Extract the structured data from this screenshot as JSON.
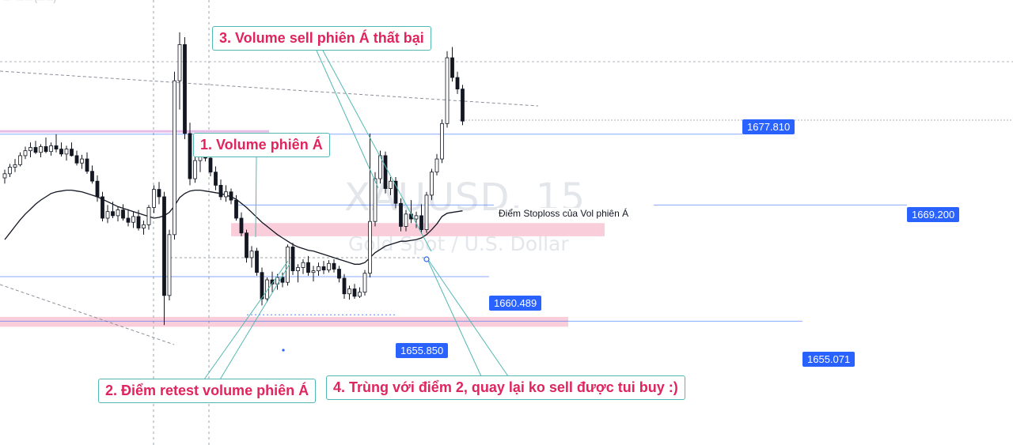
{
  "header": {
    "meta": "— · — — (— —)"
  },
  "watermark": {
    "symbol": "XAUUSD, 15",
    "description": "Gold Spot / U.S. Dollar"
  },
  "annotations": {
    "note1": "1. Volume phiên Á",
    "note2": "2. Điểm retest volume phiên Á",
    "note3": "3. Volume sell phiên Á thất bại",
    "note4": "4. Trùng với điểm 2, quay lại ko sell được tui buy :)",
    "stoploss": "Điểm Stoploss của Vol phiên Á"
  },
  "price_labels": {
    "p1": "1677.810",
    "p2": "1669.200",
    "p3": "1660.489",
    "p4": "1655.850",
    "p5": "1655.071"
  },
  "colors": {
    "up_candle_fill": "#ffffff",
    "down_candle_fill": "#131722",
    "candle_outline": "#131722",
    "moving_average": "#131722",
    "horizontal_line": "#2962ff",
    "zone": "#f8c6d4",
    "callout_border": "#52b8b3",
    "callout_text": "#e0245e",
    "price_tag_bg": "#2962ff"
  },
  "chart_data": {
    "type": "candlestick",
    "symbol": "XAUUSD",
    "timeframe": "15",
    "ylim": [
      1648.0,
      1692.2
    ],
    "horizontal_levels": [
      1677.81,
      1669.2,
      1660.489,
      1655.85,
      1655.071
    ],
    "zones": [
      {
        "from": 1665.4,
        "to": 1667.0
      },
      {
        "from": 1654.4,
        "to": 1655.6
      },
      {
        "from": 1677.8,
        "to": 1678.2
      }
    ],
    "ohlc": [
      [
        1672.5,
        1673.5,
        1671.8,
        1673.0
      ],
      [
        1673.0,
        1674.2,
        1672.6,
        1673.8
      ],
      [
        1673.8,
        1674.8,
        1673.2,
        1674.1
      ],
      [
        1674.1,
        1675.6,
        1673.9,
        1675.2
      ],
      [
        1675.2,
        1676.3,
        1674.8,
        1675.8
      ],
      [
        1675.8,
        1676.8,
        1675.0,
        1676.2
      ],
      [
        1676.2,
        1677.0,
        1675.4,
        1675.6
      ],
      [
        1675.6,
        1676.6,
        1675.0,
        1676.3
      ],
      [
        1676.3,
        1677.4,
        1675.5,
        1675.7
      ],
      [
        1675.7,
        1676.8,
        1675.2,
        1676.4
      ],
      [
        1676.4,
        1677.8,
        1675.6,
        1676.0
      ],
      [
        1676.0,
        1676.8,
        1675.1,
        1675.4
      ],
      [
        1675.4,
        1676.4,
        1674.6,
        1676.0
      ],
      [
        1676.0,
        1676.8,
        1675.1,
        1675.2
      ],
      [
        1675.2,
        1675.8,
        1674.0,
        1674.3
      ],
      [
        1674.3,
        1675.3,
        1673.6,
        1674.8
      ],
      [
        1674.8,
        1675.6,
        1673.0,
        1673.3
      ],
      [
        1673.3,
        1674.0,
        1671.8,
        1672.1
      ],
      [
        1672.1,
        1672.8,
        1669.6,
        1670.2
      ],
      [
        1670.2,
        1670.8,
        1667.2,
        1667.6
      ],
      [
        1667.6,
        1669.2,
        1667.0,
        1668.4
      ],
      [
        1668.4,
        1669.6,
        1667.6,
        1667.9
      ],
      [
        1667.9,
        1669.0,
        1667.2,
        1668.6
      ],
      [
        1668.6,
        1669.3,
        1667.3,
        1667.6
      ],
      [
        1667.6,
        1668.7,
        1666.6,
        1667.1
      ],
      [
        1667.1,
        1668.4,
        1666.4,
        1667.8
      ],
      [
        1667.8,
        1668.6,
        1666.1,
        1666.4
      ],
      [
        1666.4,
        1667.3,
        1665.6,
        1666.8
      ],
      [
        1666.8,
        1669.2,
        1666.2,
        1668.9
      ],
      [
        1668.9,
        1671.6,
        1668.2,
        1671.1
      ],
      [
        1671.1,
        1672.0,
        1669.3,
        1670.2
      ],
      [
        1670.2,
        1670.8,
        1654.6,
        1658.2
      ],
      [
        1658.2,
        1666.2,
        1657.6,
        1665.6
      ],
      [
        1665.6,
        1685.4,
        1665.0,
        1684.3
      ],
      [
        1684.3,
        1690.2,
        1680.8,
        1688.7
      ],
      [
        1688.7,
        1689.6,
        1677.2,
        1677.9
      ],
      [
        1677.9,
        1679.2,
        1671.6,
        1672.4
      ],
      [
        1672.4,
        1675.5,
        1671.9,
        1674.6
      ],
      [
        1674.6,
        1675.9,
        1673.2,
        1675.1
      ],
      [
        1675.1,
        1676.1,
        1674.5,
        1674.9
      ],
      [
        1674.9,
        1675.3,
        1672.7,
        1673.2
      ],
      [
        1673.2,
        1673.9,
        1671.0,
        1671.6
      ],
      [
        1671.6,
        1672.3,
        1669.8,
        1670.2
      ],
      [
        1670.2,
        1671.6,
        1669.6,
        1670.8
      ],
      [
        1670.8,
        1671.2,
        1669.3,
        1669.8
      ],
      [
        1669.8,
        1670.4,
        1667.3,
        1667.6
      ],
      [
        1667.6,
        1668.3,
        1665.4,
        1665.8
      ],
      [
        1665.8,
        1666.2,
        1662.2,
        1662.8
      ],
      [
        1662.8,
        1664.2,
        1661.6,
        1663.6
      ],
      [
        1663.6,
        1664.0,
        1660.6,
        1661.0
      ],
      [
        1661.0,
        1661.6,
        1657.0,
        1657.8
      ],
      [
        1657.8,
        1660.4,
        1657.4,
        1660.1
      ],
      [
        1660.1,
        1661.1,
        1658.6,
        1659.6
      ],
      [
        1659.6,
        1660.8,
        1658.9,
        1660.4
      ],
      [
        1660.4,
        1661.0,
        1659.2,
        1659.8
      ],
      [
        1659.8,
        1664.4,
        1659.4,
        1664.1
      ],
      [
        1664.1,
        1664.6,
        1660.7,
        1661.2
      ],
      [
        1661.2,
        1662.0,
        1659.8,
        1661.6
      ],
      [
        1661.6,
        1662.6,
        1660.8,
        1662.2
      ],
      [
        1662.2,
        1663.0,
        1660.6,
        1661.0
      ],
      [
        1661.0,
        1661.8,
        1659.9,
        1661.2
      ],
      [
        1661.2,
        1662.2,
        1660.6,
        1661.7
      ],
      [
        1661.7,
        1662.4,
        1660.8,
        1661.3
      ],
      [
        1661.3,
        1662.5,
        1661.0,
        1662.1
      ],
      [
        1662.1,
        1662.6,
        1661.0,
        1661.4
      ],
      [
        1661.4,
        1661.8,
        1659.8,
        1660.3
      ],
      [
        1660.3,
        1660.8,
        1657.8,
        1658.4
      ],
      [
        1658.4,
        1659.4,
        1657.7,
        1659.0
      ],
      [
        1659.0,
        1659.6,
        1657.8,
        1658.1
      ],
      [
        1658.1,
        1659.2,
        1657.9,
        1658.6
      ],
      [
        1658.6,
        1661.3,
        1658.2,
        1660.9
      ],
      [
        1660.9,
        1677.9,
        1660.4,
        1667.2
      ],
      [
        1667.2,
        1673.2,
        1666.6,
        1672.4
      ],
      [
        1672.4,
        1675.8,
        1671.8,
        1675.2
      ],
      [
        1675.2,
        1675.7,
        1670.6,
        1671.2
      ],
      [
        1671.2,
        1672.6,
        1670.4,
        1672.1
      ],
      [
        1672.1,
        1672.6,
        1668.8,
        1669.4
      ],
      [
        1669.4,
        1670.0,
        1666.0,
        1666.6
      ],
      [
        1666.6,
        1668.6,
        1666.0,
        1668.1
      ],
      [
        1668.1,
        1669.8,
        1667.0,
        1667.5
      ],
      [
        1667.5,
        1668.4,
        1666.4,
        1667.9
      ],
      [
        1667.9,
        1669.3,
        1665.7,
        1666.2
      ],
      [
        1666.2,
        1670.8,
        1665.8,
        1670.4
      ],
      [
        1670.4,
        1673.6,
        1669.8,
        1673.2
      ],
      [
        1673.2,
        1675.4,
        1672.8,
        1674.8
      ],
      [
        1674.8,
        1679.6,
        1674.3,
        1679.1
      ],
      [
        1679.1,
        1687.9,
        1678.6,
        1687.1
      ],
      [
        1687.1,
        1688.4,
        1684.2,
        1684.7
      ],
      [
        1684.7,
        1685.4,
        1682.7,
        1683.3
      ],
      [
        1683.3,
        1683.8,
        1678.9,
        1679.4
      ]
    ],
    "moving_average": [
      1665.0,
      1665.8,
      1666.6,
      1667.4,
      1668.1,
      1668.7,
      1669.3,
      1669.8,
      1670.2,
      1670.6,
      1670.8,
      1670.9,
      1671.0,
      1671.0,
      1670.9,
      1670.8,
      1670.6,
      1670.4,
      1670.2,
      1669.9,
      1669.6,
      1669.3,
      1669.0,
      1668.8,
      1668.6,
      1668.4,
      1668.2,
      1668.0,
      1667.8,
      1667.6,
      1667.7,
      1667.9,
      1668.3,
      1669.1,
      1670.1,
      1670.6,
      1670.9,
      1671.0,
      1671.0,
      1670.9,
      1670.8,
      1670.7,
      1670.6,
      1670.4,
      1670.2,
      1669.9,
      1669.4,
      1668.9,
      1668.3,
      1667.7,
      1667.1,
      1666.6,
      1666.1,
      1665.6,
      1665.2,
      1664.8,
      1664.4,
      1664.1,
      1663.9,
      1663.7,
      1663.6,
      1663.4,
      1663.2,
      1663.0,
      1662.8,
      1662.6,
      1662.4,
      1662.2,
      1662.0,
      1662.0,
      1662.2,
      1662.8,
      1663.4,
      1663.8,
      1664.2,
      1664.4,
      1664.6,
      1664.8,
      1664.8,
      1664.9,
      1665.0,
      1665.2,
      1665.6,
      1666.2,
      1666.9,
      1667.8,
      1668.2,
      1668.3,
      1668.4,
      1668.5
    ]
  }
}
